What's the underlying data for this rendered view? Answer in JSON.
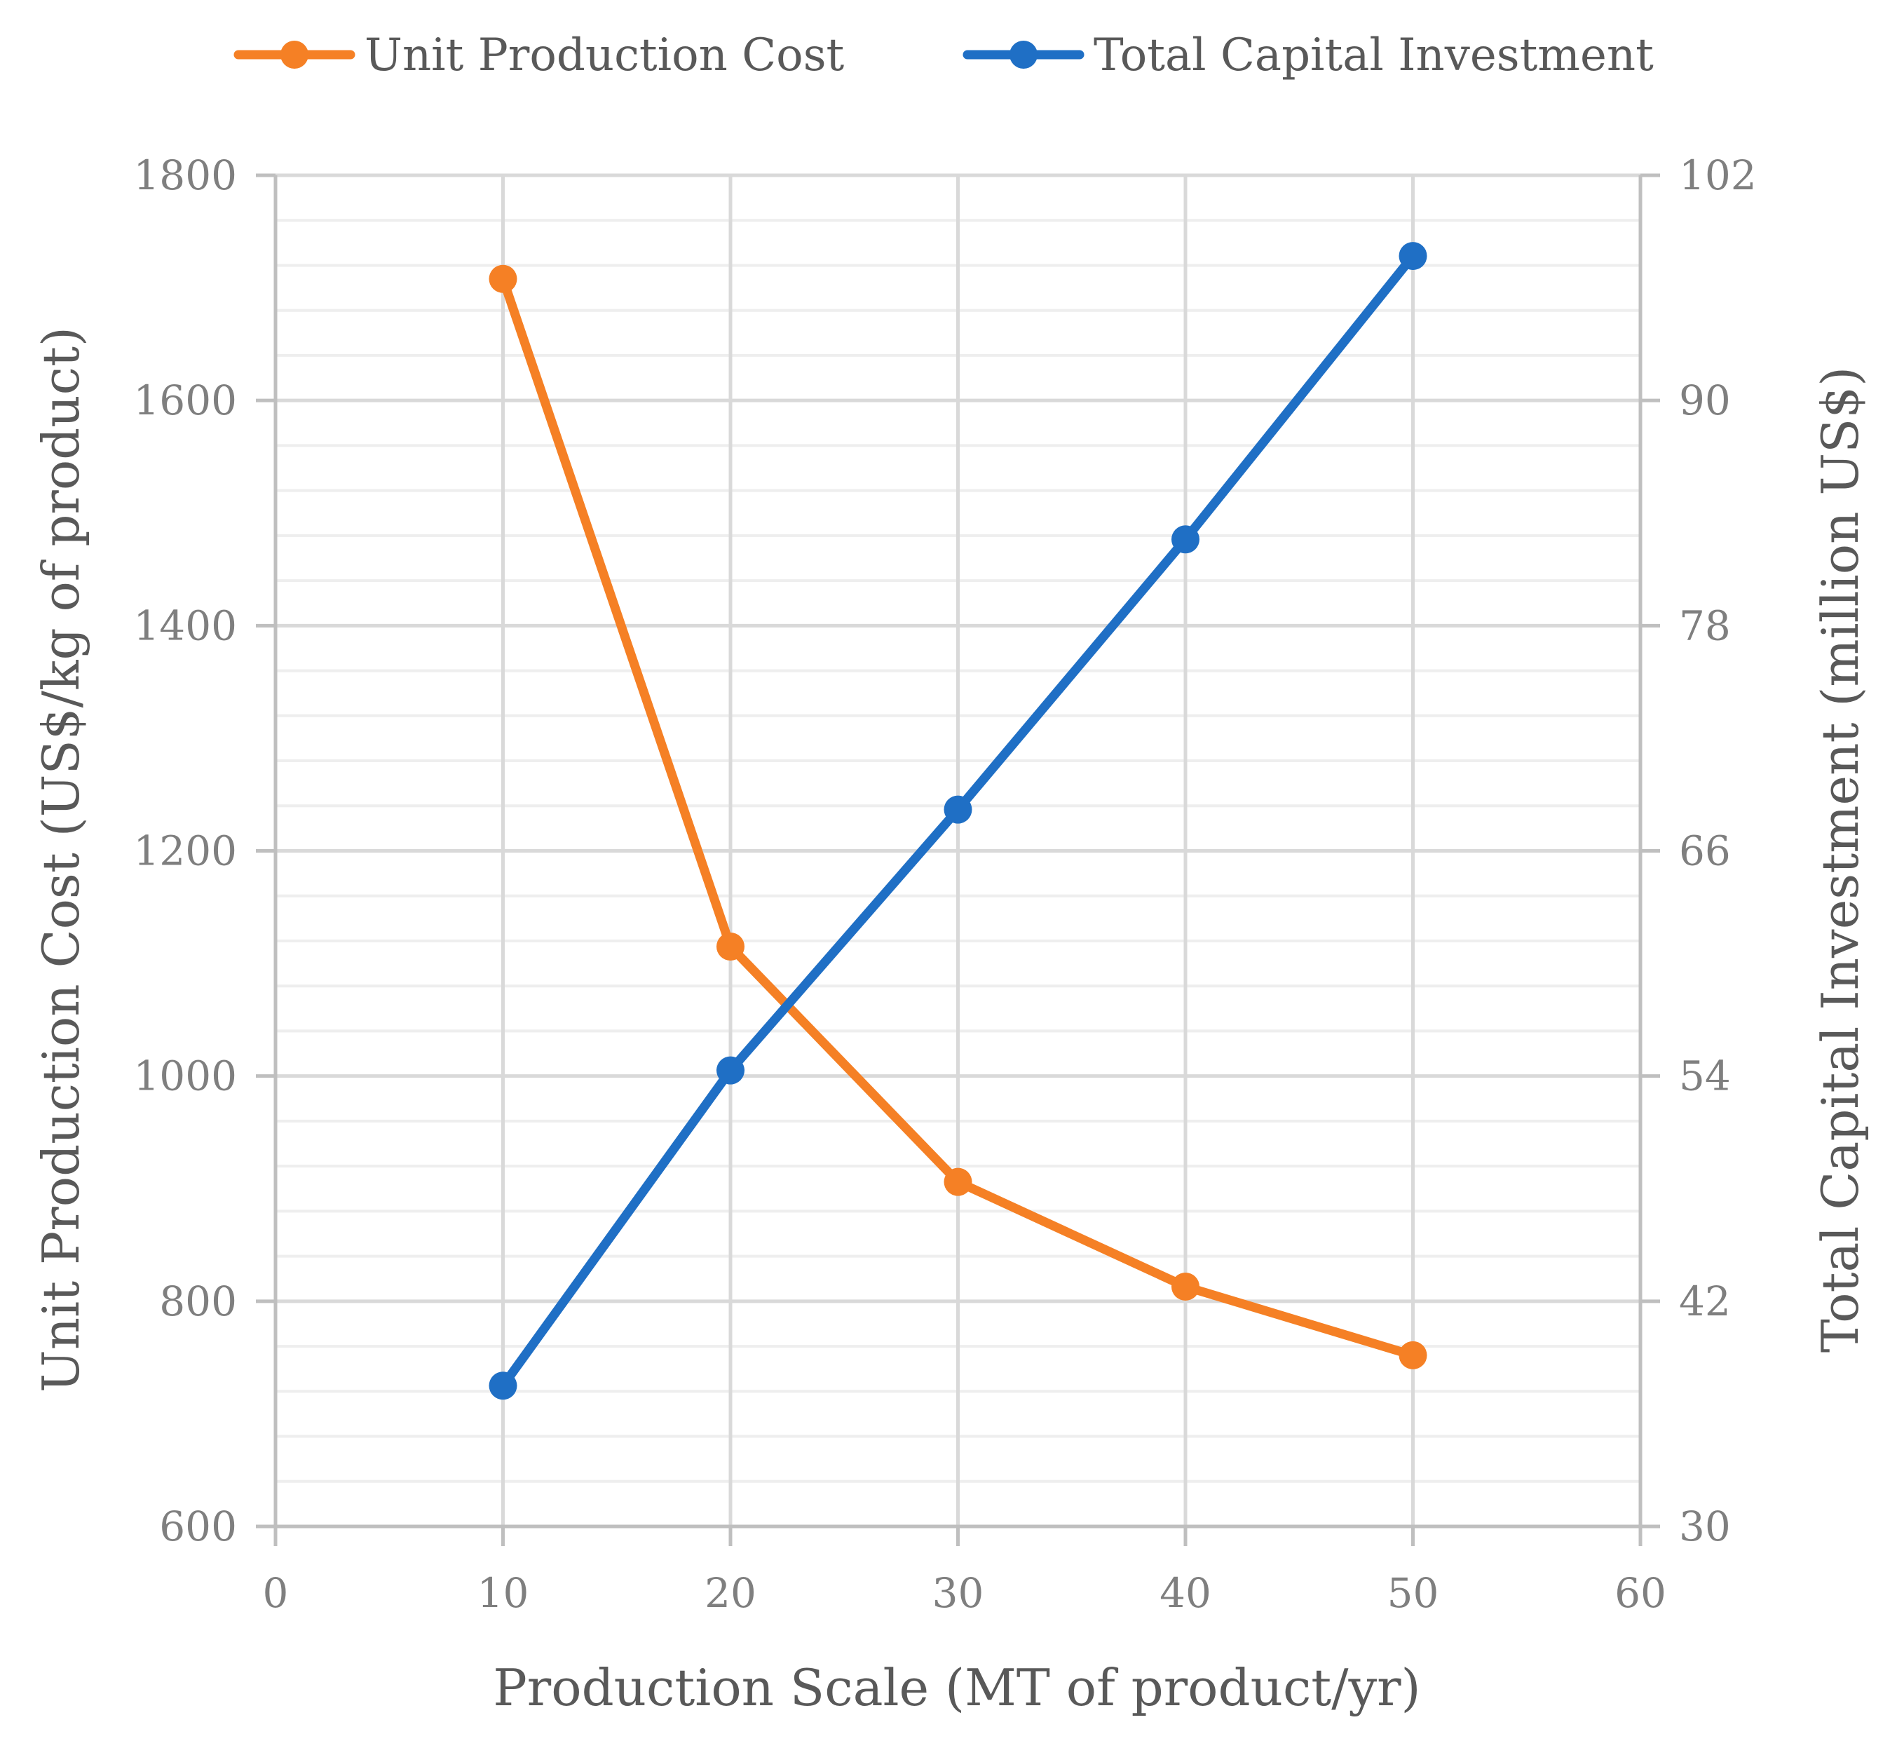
{
  "chart_data": {
    "type": "line",
    "title": "",
    "xlabel": "Production Scale (MT of product/yr)",
    "ylabel": "Unit Production Cost (US$/kg of product)",
    "y2label": "Total Capital Investment (million  US$)",
    "xlim": [
      0,
      60
    ],
    "xticks": [
      "0",
      "10",
      "20",
      "30",
      "40",
      "50",
      "60"
    ],
    "ylim": [
      600,
      1800
    ],
    "yticks": [
      "600",
      "800",
      "1000",
      "1200",
      "1400",
      "1600",
      "1800"
    ],
    "y2lim": [
      30,
      102
    ],
    "y2ticks": [
      "30",
      "42",
      "54",
      "66",
      "78",
      "90",
      "102"
    ],
    "grid": true,
    "legend_position": "top",
    "x": [
      10,
      20,
      30,
      40,
      50
    ],
    "series": [
      {
        "name": "Unit Production Cost",
        "axis": "left",
        "color": "#f58025",
        "values": [
          1708,
          1115,
          906,
          813,
          752
        ]
      },
      {
        "name": "Total Capital Investment",
        "axis": "right",
        "color": "#1f6fc5",
        "values": [
          37.5,
          54.3,
          68.2,
          82.6,
          97.7
        ]
      }
    ]
  }
}
